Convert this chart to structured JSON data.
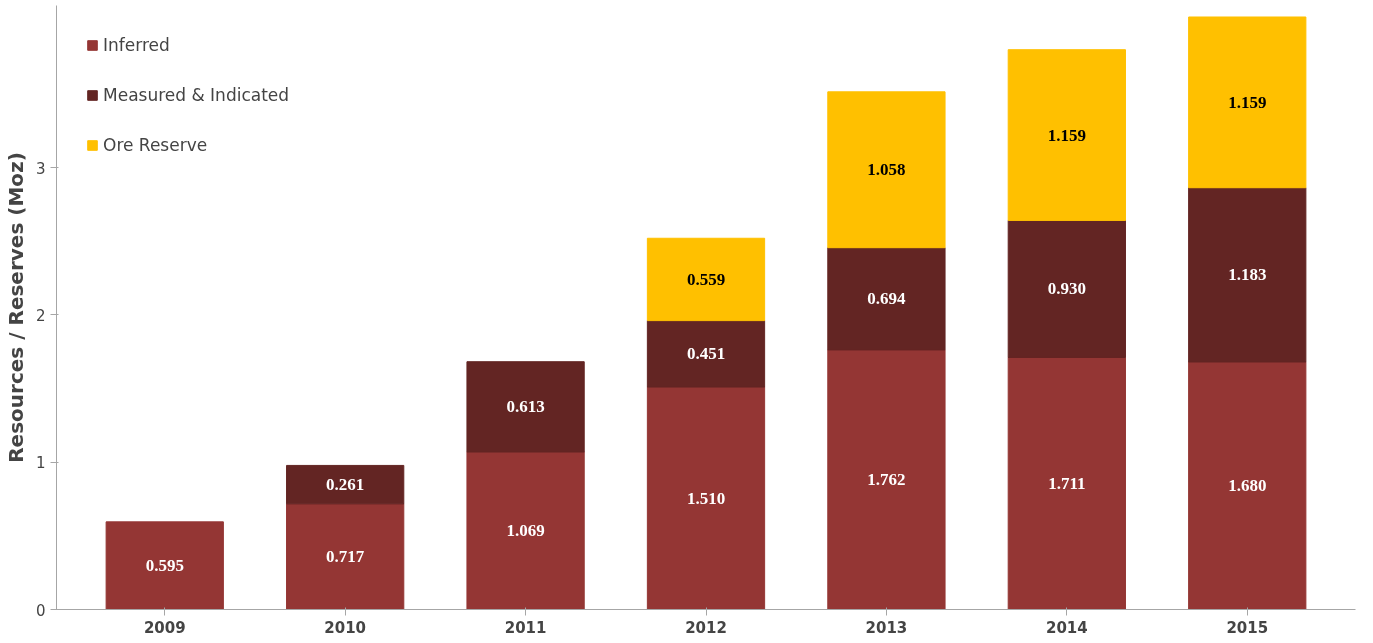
{
  "chart_data": {
    "type": "bar",
    "stacked": true,
    "ylabel": "Resources / Reserves (Moz)",
    "categories": [
      "2009",
      "2010",
      "2011",
      "2012",
      "2013",
      "2014",
      "2015"
    ],
    "series": [
      {
        "name": "Inferred",
        "color": "#943634",
        "values": [
          0.595,
          0.717,
          1.069,
          1.51,
          1.762,
          1.711,
          1.68
        ],
        "value_labels": [
          "0.595",
          "0.717",
          "1.069",
          "1.510",
          "1.762",
          "1.711",
          "1.680"
        ]
      },
      {
        "name": "Measured & Indicated",
        "color": "#632523",
        "values": [
          null,
          0.261,
          0.613,
          0.451,
          0.694,
          0.93,
          1.183
        ],
        "value_labels": [
          null,
          "0.261",
          "0.613",
          "0.451",
          "0.694",
          "0.930",
          "1.183"
        ]
      },
      {
        "name": "Ore Reserve",
        "color": "#ffc000",
        "values": [
          null,
          null,
          null,
          0.559,
          1.058,
          1.159,
          1.159
        ],
        "value_labels": [
          null,
          null,
          null,
          "0.559",
          "1.058",
          "1.159",
          "1.159"
        ]
      }
    ],
    "ylim": [
      0,
      4.1
    ],
    "yticks": [
      0,
      1,
      2,
      3
    ],
    "grid": false,
    "legend": "top left"
  }
}
